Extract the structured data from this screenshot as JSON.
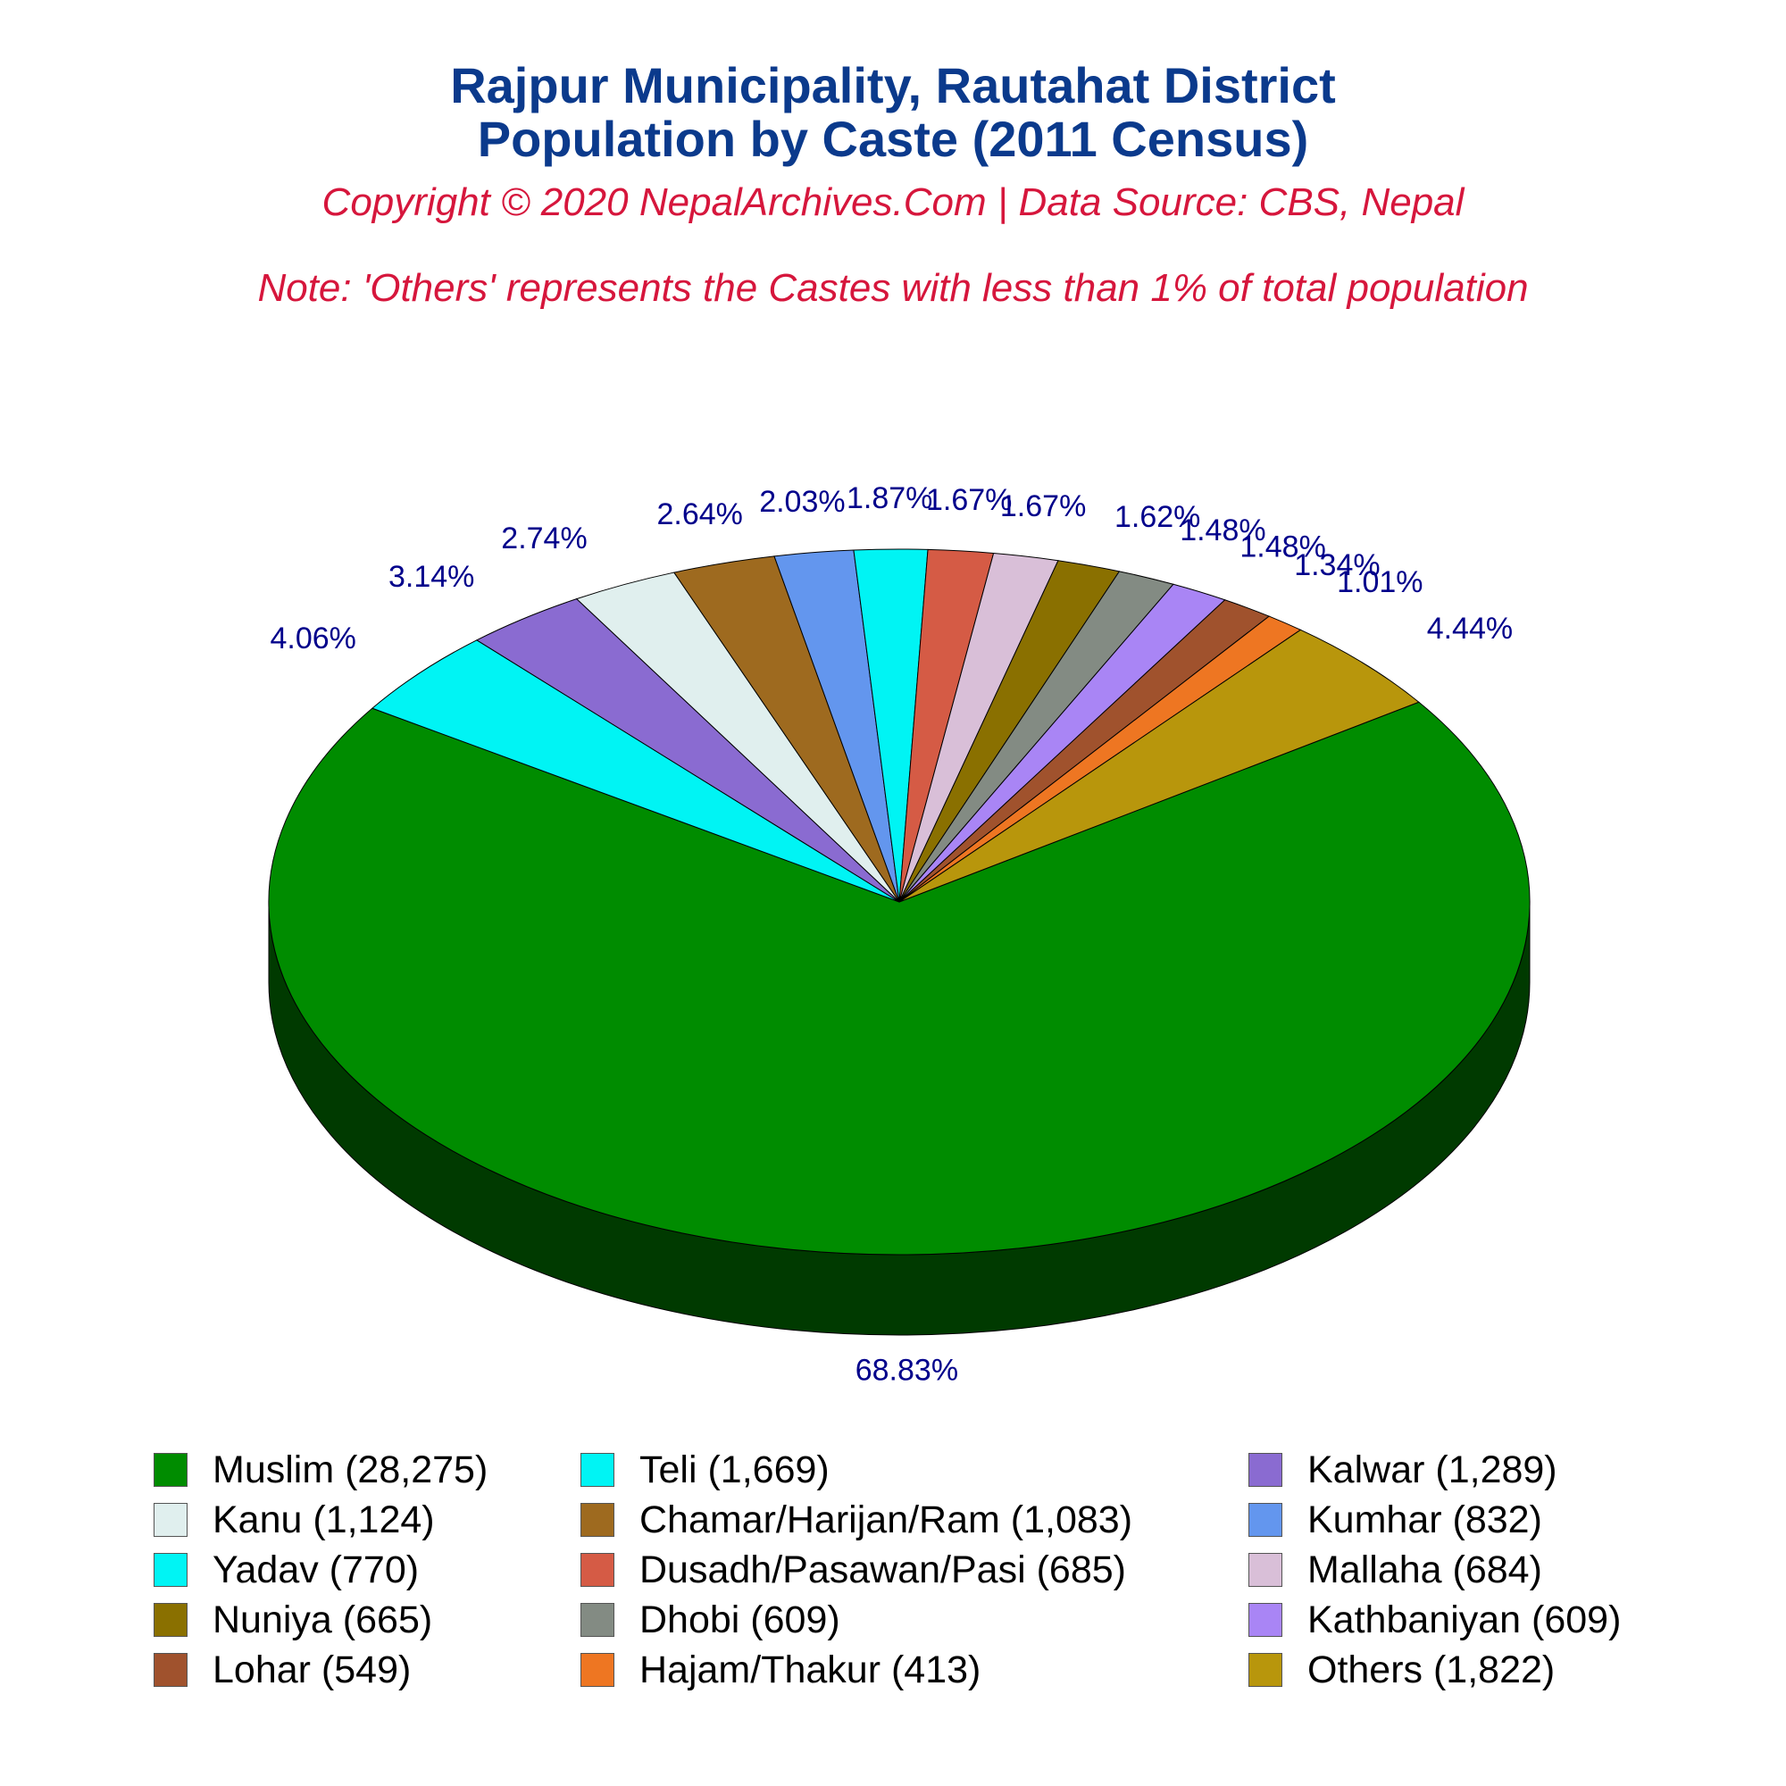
{
  "header": {
    "title_line1": "Rajpur Municipality, Rautahat District",
    "title_line2": "Population by Caste (2011 Census)",
    "copyright": "Copyright © 2020 NepalArchives.Com | Data Source: CBS, Nepal",
    "note": "Note: 'Others' represents the Castes with less than 1% of total population"
  },
  "chart_data": {
    "type": "pie",
    "style": "3d-pie",
    "slices": [
      {
        "label": "Muslim",
        "value": 28275,
        "percent": "68.83%",
        "color": "#008c00",
        "legend": "Muslim (28,275)"
      },
      {
        "label": "Teli",
        "value": 1669,
        "percent": "4.06%",
        "color": "#00f4f4",
        "legend": "Teli (1,669)"
      },
      {
        "label": "Kalwar",
        "value": 1289,
        "percent": "3.14%",
        "color": "#8a6bd1",
        "legend": "Kalwar (1,289)"
      },
      {
        "label": "Kanu",
        "value": 1124,
        "percent": "2.74%",
        "color": "#e0efee",
        "legend": "Kanu (1,124)"
      },
      {
        "label": "Chamar/Harijan/Ram",
        "value": 1083,
        "percent": "2.64%",
        "color": "#9e6a1f",
        "legend": "Chamar/Harijan/Ram (1,083)"
      },
      {
        "label": "Kumhar",
        "value": 832,
        "percent": "2.03%",
        "color": "#6396ee",
        "legend": "Kumhar (832)"
      },
      {
        "label": "Yadav",
        "value": 770,
        "percent": "1.87%",
        "color": "#00f4f4",
        "legend": "Yadav (770)"
      },
      {
        "label": "Dusadh/Pasawan/Pasi",
        "value": 685,
        "percent": "1.67%",
        "color": "#d55b45",
        "legend": "Dusadh/Pasawan/Pasi (685)"
      },
      {
        "label": "Mallaha",
        "value": 684,
        "percent": "1.67%",
        "color": "#d9bfd8",
        "legend": "Mallaha (684)"
      },
      {
        "label": "Nuniya",
        "value": 665,
        "percent": "1.62%",
        "color": "#8a7000",
        "legend": "Nuniya (665)"
      },
      {
        "label": "Dhobi",
        "value": 609,
        "percent": "1.48%",
        "color": "#838b83",
        "legend": "Dhobi (609)"
      },
      {
        "label": "Kathbaniyan",
        "value": 609,
        "percent": "1.48%",
        "color": "#a985f5",
        "legend": "Kathbaniyan (609)"
      },
      {
        "label": "Lohar",
        "value": 549,
        "percent": "1.34%",
        "color": "#a0522d",
        "legend": "Lohar (549)"
      },
      {
        "label": "Hajam/Thakur",
        "value": 413,
        "percent": "1.01%",
        "color": "#ee7622",
        "legend": "Hajam/Thakur (413)"
      },
      {
        "label": "Others",
        "value": 1822,
        "percent": "4.44%",
        "color": "#b8960c",
        "legend": "Others (1,822)"
      }
    ],
    "side_colors": [
      "#003a00",
      "#009ea6",
      "#250e6b",
      "#8a9590",
      "#3d0a00",
      "#0a3d8f",
      "#00a5a5",
      "#7a0000",
      "#8b5a7a"
    ],
    "label_color": "#00008b",
    "legend_columns": 3,
    "legend_placement": "bottom"
  }
}
